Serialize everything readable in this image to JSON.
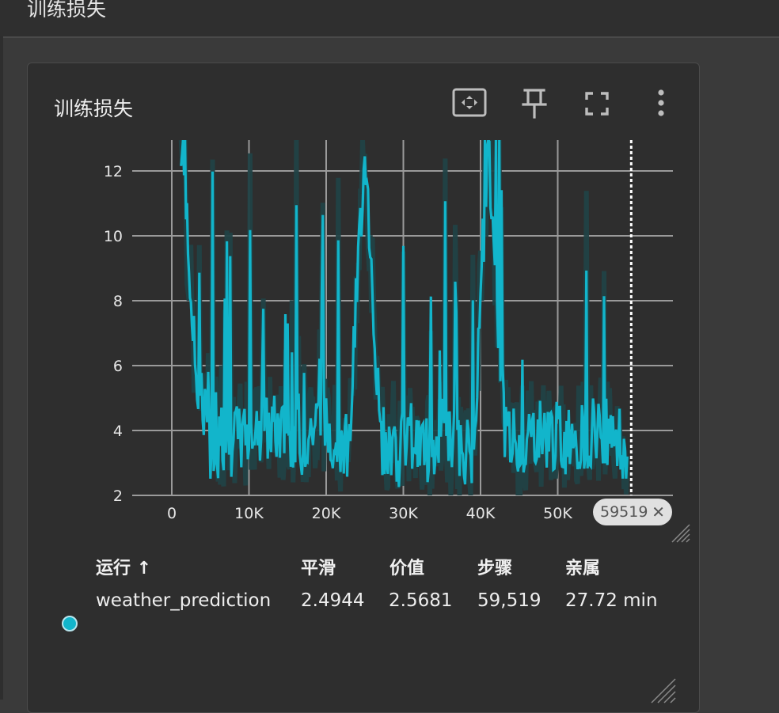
{
  "page": {
    "header_title": "训练损失"
  },
  "card": {
    "title": "训练损失",
    "tools": [
      "fit-domain-icon",
      "pin-icon",
      "fullscreen-icon",
      "more-vert-icon"
    ]
  },
  "chart_data": {
    "type": "line",
    "x_ticks": [
      "0",
      "10K",
      "20K",
      "30K",
      "40K",
      "50K"
    ],
    "y_ticks": [
      "12",
      "10",
      "8",
      "6",
      "4",
      "2"
    ],
    "xlim": [
      0,
      65000
    ],
    "ylim": [
      2,
      13
    ],
    "cursor_step": "59519",
    "series": [
      {
        "color": "#12b5cb",
        "raw_color": "#214246",
        "x": [
          1200,
          3000,
          5000,
          7000,
          9000,
          11000,
          13000,
          15000,
          17000,
          19000,
          21000,
          23000,
          25000,
          27000,
          29000,
          31000,
          33000,
          35000,
          37000,
          39000,
          41000,
          43000,
          45000,
          47000,
          49000,
          51000,
          53000,
          55000,
          57000,
          59000
        ],
        "y": [
          13,
          6.1,
          3.6,
          3.5,
          3.8,
          3.9,
          4.1,
          3.8,
          3.7,
          4.3,
          3.9,
          3.6,
          13,
          3.8,
          3.2,
          3.9,
          3.4,
          3.9,
          3.5,
          3.3,
          13,
          4.3,
          3.4,
          4.0,
          3.9,
          3.7,
          3.8,
          4.1,
          4.0,
          3.2
        ]
      }
    ]
  },
  "legend": {
    "headers": {
      "run": "运行 ↑",
      "smoothed": "平滑",
      "value": "价值",
      "step": "步骤",
      "relative": "亲属"
    },
    "rows": [
      {
        "run": "weather_prediction",
        "smoothed": "2.4944",
        "value": "2.5681",
        "step": "59,519",
        "relative": "27.72 min",
        "color": "#12b5cb"
      }
    ]
  }
}
